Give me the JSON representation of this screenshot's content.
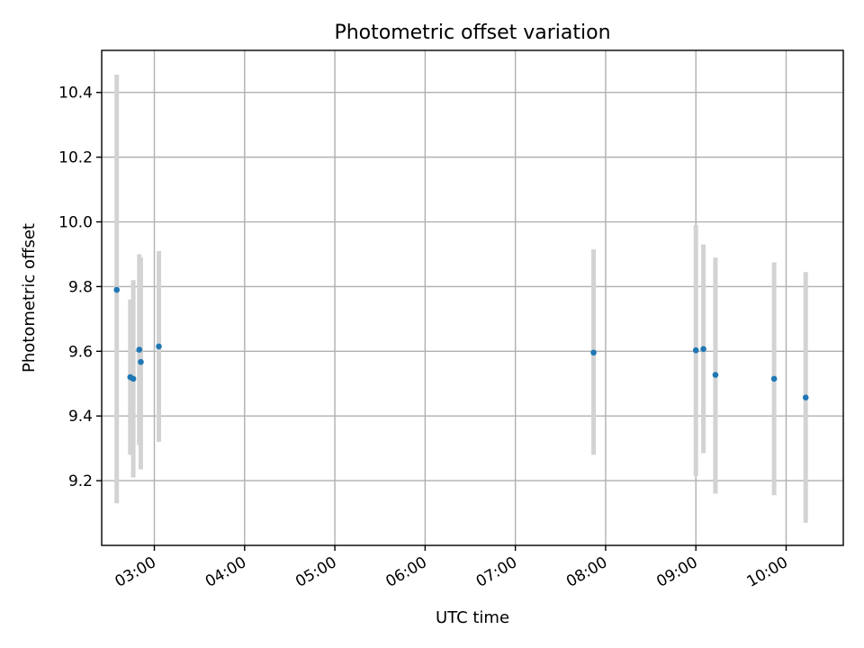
{
  "chart_data": {
    "type": "scatter",
    "title": "Photometric offset variation",
    "xlabel": "UTC time",
    "ylabel": "Photometric offset",
    "x_axis": "time",
    "xlim": [
      "02:25",
      "10:38"
    ],
    "ylim": [
      9.0,
      10.53
    ],
    "x_ticks": [
      "03:00",
      "04:00",
      "05:00",
      "06:00",
      "07:00",
      "08:00",
      "09:00",
      "10:00"
    ],
    "y_ticks": [
      9.2,
      9.4,
      9.6,
      9.8,
      10.0,
      10.2,
      10.4
    ],
    "y_tick_labels": [
      "9.2",
      "9.4",
      "9.6",
      "9.8",
      "10.0",
      "10.2",
      "10.4"
    ],
    "grid": true,
    "colors": {
      "point": "#1f77b4",
      "errorbar": "#d3d3d3"
    },
    "points": [
      {
        "x": "02:35",
        "y": 9.79,
        "ylow": 9.13,
        "yhigh": 10.455
      },
      {
        "x": "02:44",
        "y": 9.52,
        "ylow": 9.28,
        "yhigh": 9.76
      },
      {
        "x": "02:46",
        "y": 9.515,
        "ylow": 9.21,
        "yhigh": 9.82
      },
      {
        "x": "02:50",
        "y": 9.605,
        "ylow": 9.31,
        "yhigh": 9.9
      },
      {
        "x": "02:51",
        "y": 9.567,
        "ylow": 9.235,
        "yhigh": 9.89
      },
      {
        "x": "03:03",
        "y": 9.615,
        "ylow": 9.32,
        "yhigh": 9.91
      },
      {
        "x": "07:52",
        "y": 9.596,
        "ylow": 9.28,
        "yhigh": 9.915
      },
      {
        "x": "09:00",
        "y": 9.603,
        "ylow": 9.215,
        "yhigh": 9.99
      },
      {
        "x": "09:05",
        "y": 9.607,
        "ylow": 9.285,
        "yhigh": 9.93
      },
      {
        "x": "09:13",
        "y": 9.527,
        "ylow": 9.16,
        "yhigh": 9.89
      },
      {
        "x": "09:52",
        "y": 9.515,
        "ylow": 9.155,
        "yhigh": 9.875
      },
      {
        "x": "10:13",
        "y": 9.457,
        "ylow": 9.07,
        "yhigh": 9.845
      }
    ]
  }
}
